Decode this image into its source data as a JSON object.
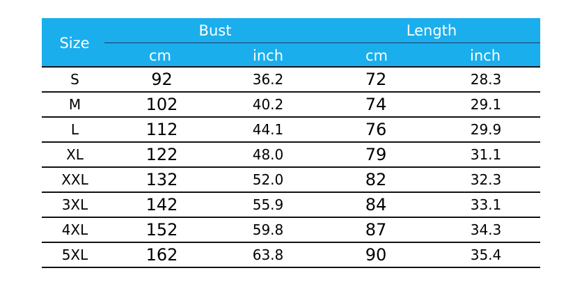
{
  "header": {
    "size": "Size",
    "bust": "Bust",
    "length": "Length",
    "bust_cm": "cm",
    "bust_inch": "inch",
    "length_cm": "cm",
    "length_inch": "inch"
  },
  "header_color": "#1aaeed",
  "rows": [
    [
      "S",
      "92",
      "36.2",
      "72",
      "28.3"
    ],
    [
      "M",
      "102",
      "40.2",
      "74",
      "29.1"
    ],
    [
      "L",
      "112",
      "44.1",
      "76",
      "29.9"
    ],
    [
      "XL",
      "122",
      "48.0",
      "79",
      "31.1"
    ],
    [
      "XXL",
      "132",
      "52.0",
      "82",
      "32.3"
    ],
    [
      "3XL",
      "142",
      "55.9",
      "84",
      "33.1"
    ],
    [
      "4XL",
      "152",
      "59.8",
      "87",
      "34.3"
    ],
    [
      "5XL",
      "162",
      "63.8",
      "90",
      "35.4"
    ]
  ]
}
